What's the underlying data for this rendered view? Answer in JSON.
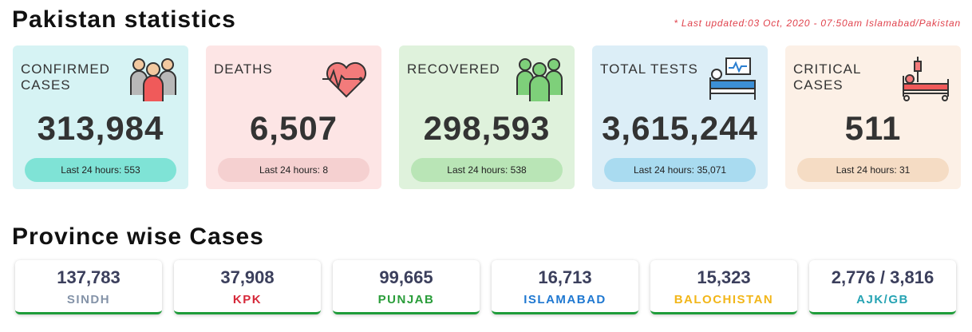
{
  "page": {
    "title": "Pakistan statistics",
    "last_updated": "* Last updated:03 Oct, 2020 - 07:50am Islamabad/Pakistan",
    "section_title": "Province wise Cases"
  },
  "cards": [
    {
      "label": "CONFIRMED CASES",
      "value": "313,984",
      "last24": "Last 24 hours: 553",
      "icon": "people-group-icon",
      "bg": "#d6f3f4",
      "pill_bg": "#7fe3d6"
    },
    {
      "label": "DEATHS",
      "value": "6,507",
      "last24": "Last 24 hours: 8",
      "icon": "heartbeat-icon",
      "bg": "#fde5e5",
      "pill_bg": "#f5d0d0"
    },
    {
      "label": "RECOVERED",
      "value": "298,593",
      "last24": "Last 24 hours: 538",
      "icon": "recovered-people-icon",
      "bg": "#dff2dc",
      "pill_bg": "#b9e5b6"
    },
    {
      "label": "TOTAL TESTS",
      "value": "3,615,244",
      "last24": "Last 24 hours: 35,071",
      "icon": "hospital-monitor-icon",
      "bg": "#dceef7",
      "pill_bg": "#a9dbf0"
    },
    {
      "label": "CRITICAL CASES",
      "value": "511",
      "last24": "Last 24 hours: 31",
      "icon": "hospital-bed-icon",
      "bg": "#fcf0e6",
      "pill_bg": "#f5dcc4"
    }
  ],
  "provinces": [
    {
      "value": "137,783",
      "name": "SINDH",
      "color": "#8493a8"
    },
    {
      "value": "37,908",
      "name": "KPK",
      "color": "#d62839"
    },
    {
      "value": "99,665",
      "name": "PUNJAB",
      "color": "#2a9d3a"
    },
    {
      "value": "16,713",
      "name": "ISLAMABAD",
      "color": "#1f78d1"
    },
    {
      "value": "15,323",
      "name": "BALOCHISTAN",
      "color": "#f2b619"
    },
    {
      "value": "2,776 / 3,816",
      "name": "AJK/GB",
      "color": "#25a3b3"
    }
  ]
}
